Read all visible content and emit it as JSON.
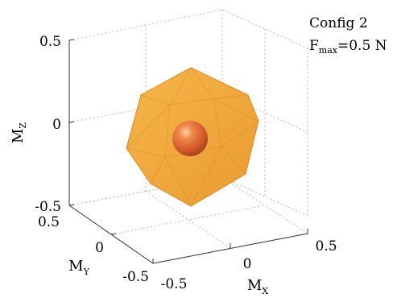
{
  "chart_data": {
    "type": "3d-surface",
    "title": "",
    "annotation": {
      "line1": "Config 2",
      "line2_main": "F",
      "line2_sub": "max",
      "line2_rest": "=0.5 N"
    },
    "axes": {
      "x": {
        "label_main": "M",
        "label_sub": "X",
        "lim": [
          -0.5,
          0.5
        ],
        "ticks": [
          "-0.5",
          "0",
          "0.5"
        ]
      },
      "y": {
        "label_main": "M",
        "label_sub": "Y",
        "lim": [
          -0.5,
          0.5
        ],
        "ticks": [
          "-0.5",
          "0",
          "0.5"
        ]
      },
      "z": {
        "label_main": "M",
        "label_sub": "Z",
        "lim": [
          -0.5,
          0.5
        ],
        "ticks": [
          "-0.5",
          "0",
          "0.5"
        ]
      }
    },
    "grid": true,
    "objects": [
      {
        "name": "moment envelope polyhedron",
        "shape": "polyhedron",
        "center": [
          0,
          0,
          0
        ],
        "approx_radius": 0.3,
        "color": "#f2a93b"
      },
      {
        "name": "sphere",
        "shape": "sphere",
        "center": [
          0,
          0,
          0
        ],
        "approx_radius": 0.08,
        "color": "#e8692f"
      }
    ]
  }
}
